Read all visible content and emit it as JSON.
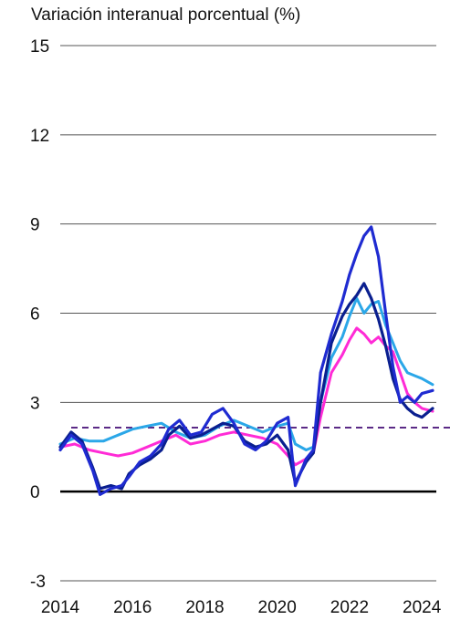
{
  "chart_data": {
    "type": "line",
    "title": "Variación interanual porcentual (%)",
    "xlabel": "",
    "ylabel": "",
    "xlim": [
      2014,
      2024.4
    ],
    "ylim": [
      -3,
      15
    ],
    "yticks": [
      -3,
      0,
      3,
      6,
      9,
      12,
      15
    ],
    "xticks": [
      2014,
      2016,
      2018,
      2020,
      2022,
      2024
    ],
    "grid": "horizontal",
    "reference_lines": [
      {
        "y": 0,
        "style": "solid",
        "color": "#000000"
      },
      {
        "y": 2.15,
        "style": "dashed",
        "color": "#5b2a86"
      }
    ],
    "series": [
      {
        "color": "#ff2bd6",
        "x": [
          2014.0,
          2014.4,
          2014.8,
          2015.2,
          2015.6,
          2016.0,
          2016.4,
          2016.8,
          2017.2,
          2017.6,
          2018.0,
          2018.4,
          2018.8,
          2019.2,
          2019.6,
          2020.0,
          2020.3,
          2020.5,
          2020.8,
          2021.0,
          2021.2,
          2021.5,
          2021.8,
          2022.0,
          2022.2,
          2022.4,
          2022.6,
          2022.8,
          2023.0,
          2023.2,
          2023.4,
          2023.6,
          2023.8,
          2024.0,
          2024.3
        ],
        "values": [
          1.5,
          1.6,
          1.4,
          1.3,
          1.2,
          1.3,
          1.5,
          1.7,
          1.9,
          1.6,
          1.7,
          1.9,
          2.0,
          1.9,
          1.8,
          1.6,
          1.2,
          0.9,
          1.1,
          1.3,
          2.5,
          4.0,
          4.6,
          5.1,
          5.5,
          5.3,
          5.0,
          5.2,
          4.9,
          4.7,
          4.0,
          3.3,
          3.0,
          2.8,
          2.7
        ]
      },
      {
        "color": "#2ba7e8",
        "x": [
          2014.0,
          2014.4,
          2014.8,
          2015.2,
          2015.6,
          2016.0,
          2016.4,
          2016.8,
          2017.2,
          2017.6,
          2018.0,
          2018.4,
          2018.8,
          2019.2,
          2019.6,
          2020.0,
          2020.3,
          2020.5,
          2020.8,
          2021.0,
          2021.2,
          2021.5,
          2021.8,
          2022.0,
          2022.2,
          2022.4,
          2022.6,
          2022.8,
          2023.0,
          2023.2,
          2023.4,
          2023.6,
          2023.8,
          2024.0,
          2024.3
        ],
        "values": [
          1.6,
          1.8,
          1.7,
          1.7,
          1.9,
          2.1,
          2.2,
          2.3,
          2.0,
          1.8,
          1.9,
          2.2,
          2.4,
          2.2,
          2.0,
          2.2,
          2.3,
          1.6,
          1.4,
          1.5,
          3.0,
          4.5,
          5.2,
          5.9,
          6.5,
          6.0,
          6.3,
          6.4,
          5.6,
          5.0,
          4.4,
          4.0,
          3.9,
          3.8,
          3.6
        ]
      },
      {
        "color": "#0a1f8f",
        "x": [
          2014.0,
          2014.3,
          2014.6,
          2014.9,
          2015.1,
          2015.4,
          2015.7,
          2015.9,
          2016.2,
          2016.5,
          2016.8,
          2017.0,
          2017.3,
          2017.6,
          2017.9,
          2018.2,
          2018.5,
          2018.8,
          2019.1,
          2019.4,
          2019.7,
          2020.0,
          2020.3,
          2020.5,
          2020.8,
          2021.0,
          2021.2,
          2021.5,
          2021.8,
          2022.0,
          2022.2,
          2022.4,
          2022.6,
          2022.8,
          2023.0,
          2023.2,
          2023.4,
          2023.6,
          2023.8,
          2024.0,
          2024.3
        ],
        "values": [
          1.5,
          2.0,
          1.7,
          0.8,
          0.1,
          0.2,
          0.1,
          0.6,
          0.9,
          1.1,
          1.4,
          1.9,
          2.2,
          1.8,
          1.9,
          2.1,
          2.3,
          2.2,
          1.7,
          1.5,
          1.6,
          1.9,
          1.4,
          0.3,
          1.0,
          1.3,
          3.0,
          5.0,
          5.9,
          6.3,
          6.6,
          7.0,
          6.5,
          5.8,
          4.9,
          3.8,
          3.1,
          2.8,
          2.6,
          2.5,
          2.8
        ]
      },
      {
        "color": "#1f2bd1",
        "x": [
          2014.0,
          2014.3,
          2014.6,
          2014.9,
          2015.1,
          2015.4,
          2015.7,
          2015.9,
          2016.2,
          2016.5,
          2016.8,
          2017.0,
          2017.3,
          2017.6,
          2017.9,
          2018.2,
          2018.5,
          2018.8,
          2019.1,
          2019.4,
          2019.7,
          2020.0,
          2020.3,
          2020.5,
          2020.8,
          2021.0,
          2021.2,
          2021.5,
          2021.8,
          2022.0,
          2022.2,
          2022.4,
          2022.6,
          2022.8,
          2023.0,
          2023.2,
          2023.4,
          2023.6,
          2023.8,
          2024.0,
          2024.3
        ],
        "values": [
          1.4,
          1.9,
          1.6,
          0.7,
          -0.1,
          0.1,
          0.2,
          0.5,
          1.0,
          1.2,
          1.6,
          2.1,
          2.4,
          1.9,
          2.0,
          2.6,
          2.8,
          2.3,
          1.6,
          1.4,
          1.7,
          2.3,
          2.5,
          0.2,
          1.1,
          1.4,
          4.0,
          5.3,
          6.4,
          7.3,
          8.0,
          8.6,
          8.9,
          7.9,
          6.0,
          4.2,
          3.0,
          3.2,
          3.0,
          3.3,
          3.4
        ]
      }
    ]
  }
}
